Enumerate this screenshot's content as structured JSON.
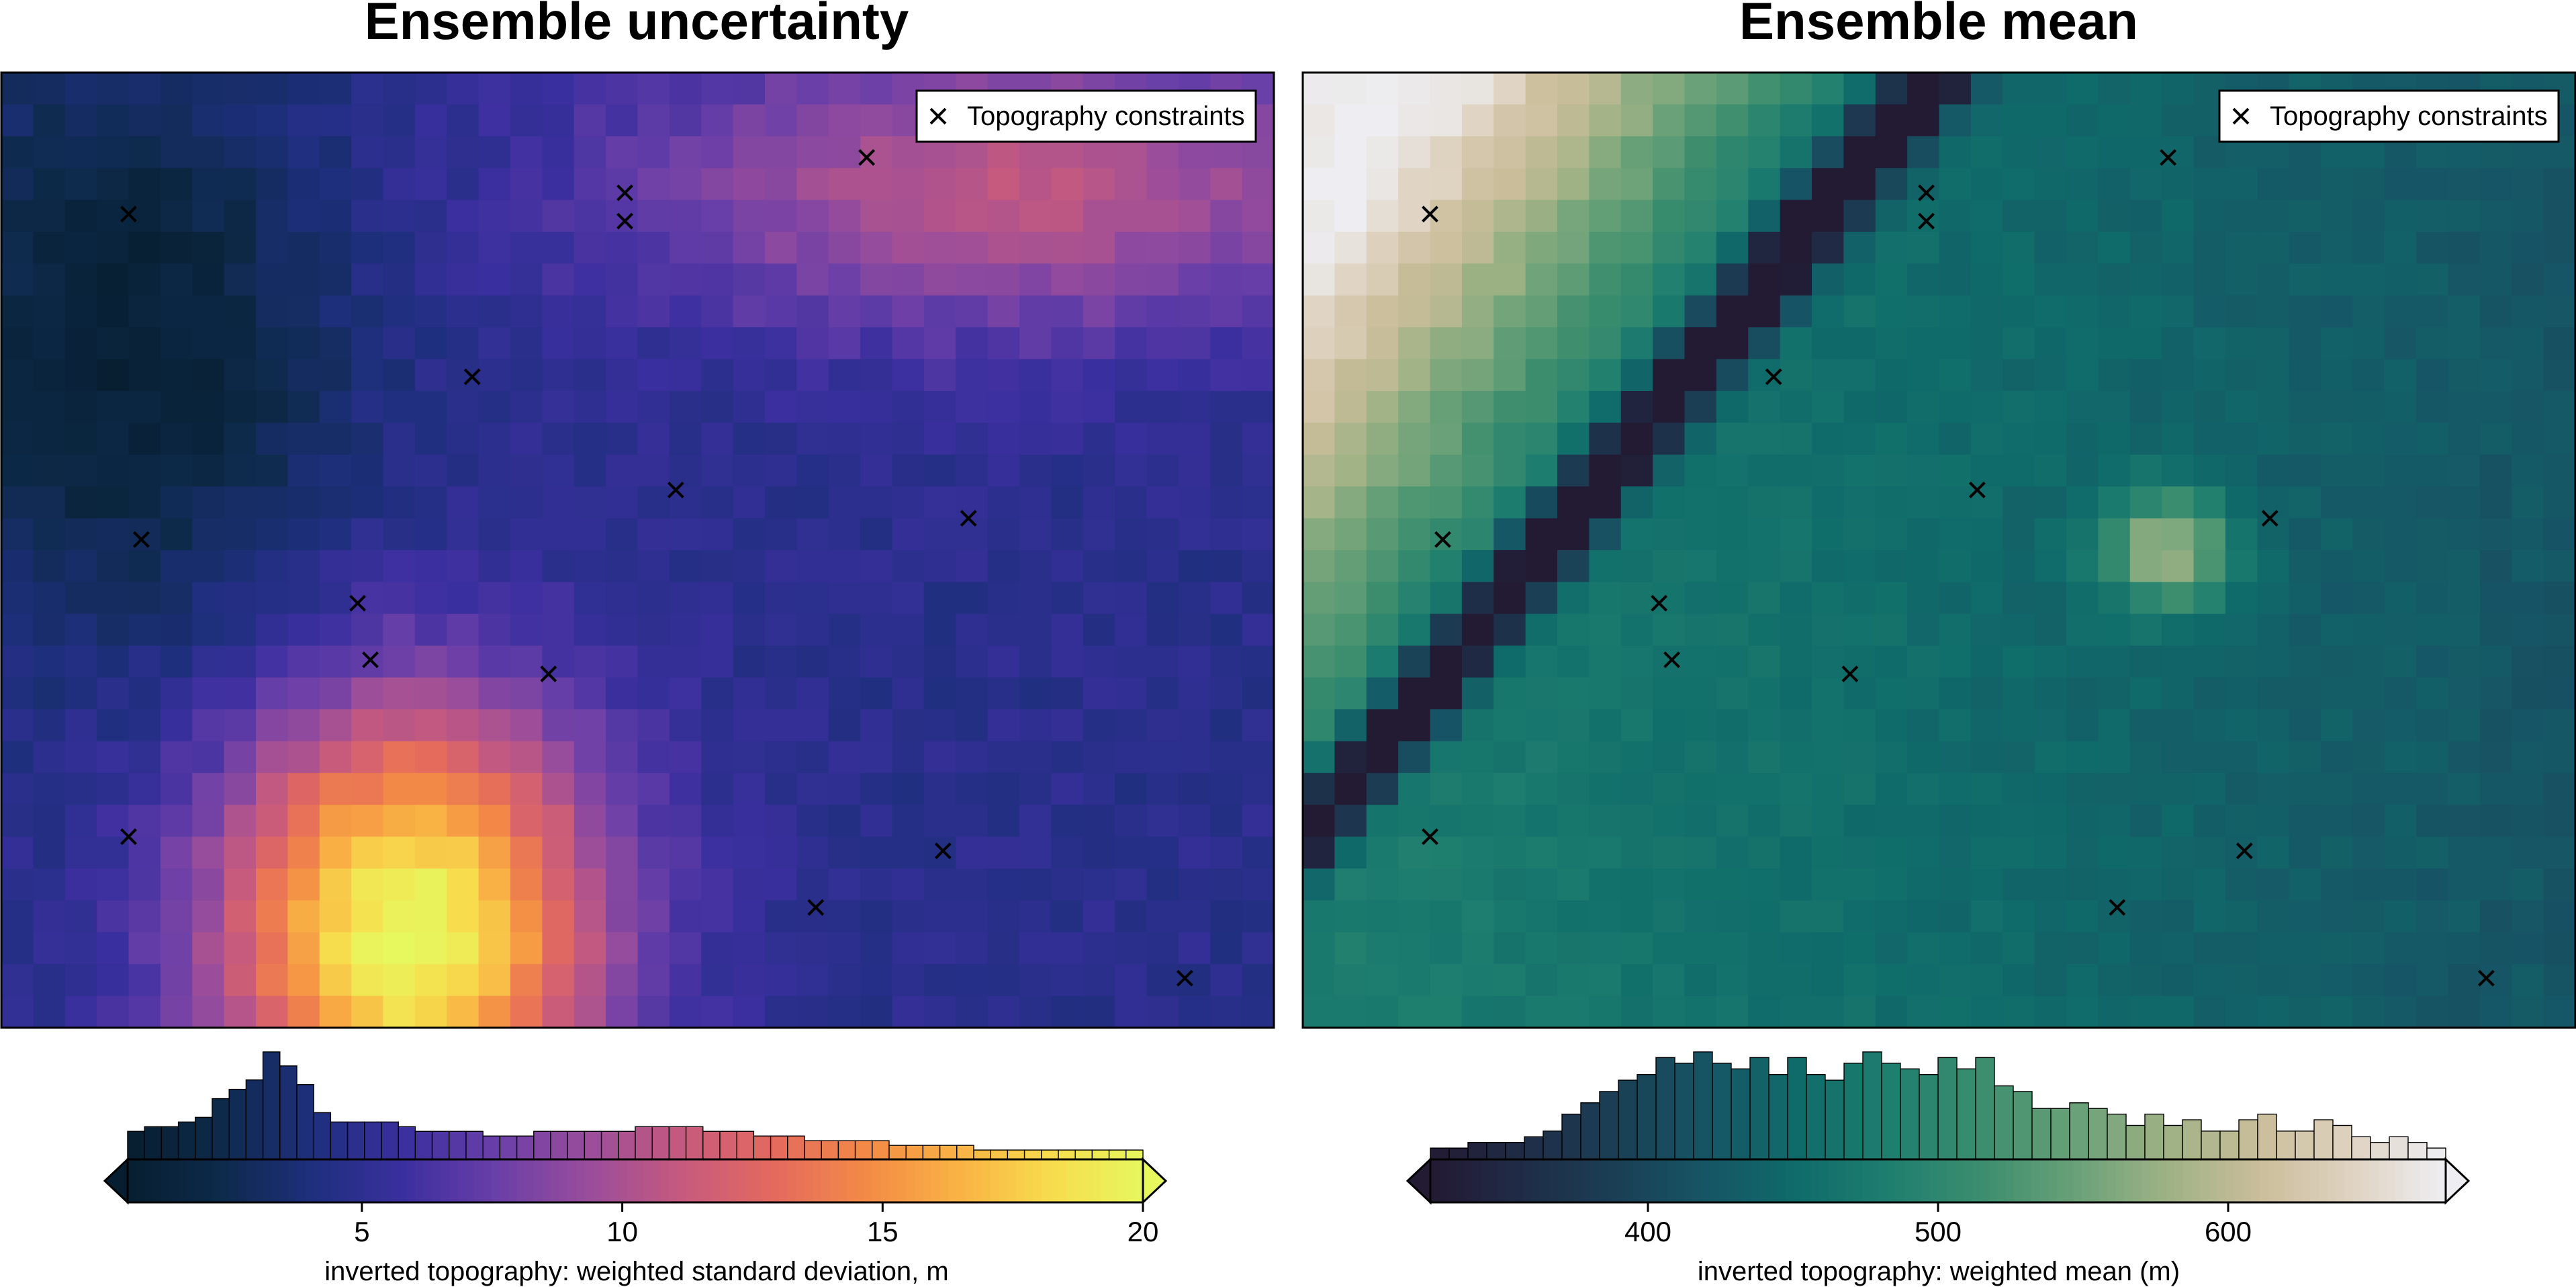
{
  "chart_data": [
    {
      "type": "heatmap",
      "title": "Ensemble uncertainty",
      "grid": "off",
      "legend": {
        "label": "Topography constraints",
        "placement": "top-right",
        "marker": "x"
      },
      "constraint_points": [
        [
          1,
          2
        ],
        [
          4.9,
          2.1
        ],
        [
          4.9,
          1.7
        ],
        [
          6.8,
          1.2
        ],
        [
          3.7,
          4.3
        ],
        [
          1.1,
          6.6
        ],
        [
          5.3,
          5.9
        ],
        [
          2.8,
          7.5
        ],
        [
          2.9,
          8.3
        ],
        [
          4.3,
          8.5
        ],
        [
          7.6,
          6.3
        ],
        [
          1,
          10.8
        ],
        [
          7.4,
          11
        ],
        [
          6.4,
          11.8
        ],
        [
          9.3,
          12.8
        ]
      ],
      "colorbar": {
        "label": "inverted topography: weighted standard deviation, m",
        "ticks": [
          5,
          10,
          15,
          20
        ],
        "tick_labels": [
          "5",
          "10",
          "15",
          "20"
        ],
        "range": [
          0.5,
          20
        ],
        "extend": "both",
        "colormap": [
          "#071e30",
          "#0d2a4a",
          "#1e2f7d",
          "#3b2f9f",
          "#6a3fa8",
          "#9a4d9b",
          "#c65a7e",
          "#e46a5e",
          "#f38a46",
          "#f9b244",
          "#f7dc4d",
          "#e7f75e"
        ],
        "histogram": [
          6,
          7,
          7,
          8,
          9,
          13,
          15,
          17,
          23,
          20,
          16,
          10,
          8,
          8,
          8,
          8,
          7,
          6,
          6,
          6,
          6,
          5,
          5,
          5,
          6,
          6,
          6,
          6,
          6,
          6,
          7,
          7,
          7,
          7,
          6,
          6,
          6,
          5,
          5,
          5,
          4,
          4,
          4,
          4,
          4,
          3,
          3,
          3,
          3,
          3,
          2,
          2,
          2,
          2,
          2,
          2,
          2,
          2,
          2,
          2
        ]
      }
    },
    {
      "type": "heatmap",
      "title": "Ensemble mean",
      "grid": "off",
      "legend": {
        "label": "Topography constraints",
        "placement": "top-right",
        "marker": "x"
      },
      "constraint_points": [
        [
          1,
          2
        ],
        [
          4.9,
          2.1
        ],
        [
          4.9,
          1.7
        ],
        [
          6.8,
          1.2
        ],
        [
          3.7,
          4.3
        ],
        [
          1.1,
          6.6
        ],
        [
          5.3,
          5.9
        ],
        [
          2.8,
          7.5
        ],
        [
          2.9,
          8.3
        ],
        [
          4.3,
          8.5
        ],
        [
          7.6,
          6.3
        ],
        [
          1,
          10.8
        ],
        [
          7.4,
          11
        ],
        [
          6.4,
          11.8
        ],
        [
          9.3,
          12.8
        ]
      ],
      "colorbar": {
        "label": "inverted topography: weighted mean (m)",
        "ticks": [
          400,
          500,
          600
        ],
        "tick_labels": [
          "400",
          "500",
          "600"
        ],
        "range": [
          325,
          675
        ],
        "extend": "both",
        "colormap": [
          "#231a33",
          "#1f2c47",
          "#1b3f55",
          "#165565",
          "#0f6c6a",
          "#1f7f6f",
          "#3d8e6e",
          "#6aa178",
          "#9fb285",
          "#cbbe9b",
          "#dfd3c2",
          "#eeeef2"
        ],
        "histogram": [
          2,
          2,
          3,
          3,
          3,
          4,
          5,
          8,
          10,
          12,
          14,
          15,
          18,
          17,
          19,
          17,
          16,
          18,
          15,
          18,
          15,
          14,
          17,
          19,
          17,
          16,
          15,
          18,
          16,
          18,
          13,
          12,
          9,
          9,
          10,
          9,
          8,
          6,
          8,
          6,
          7,
          5,
          5,
          7,
          8,
          5,
          5,
          7,
          6,
          4,
          3,
          4,
          3,
          2
        ]
      }
    }
  ]
}
